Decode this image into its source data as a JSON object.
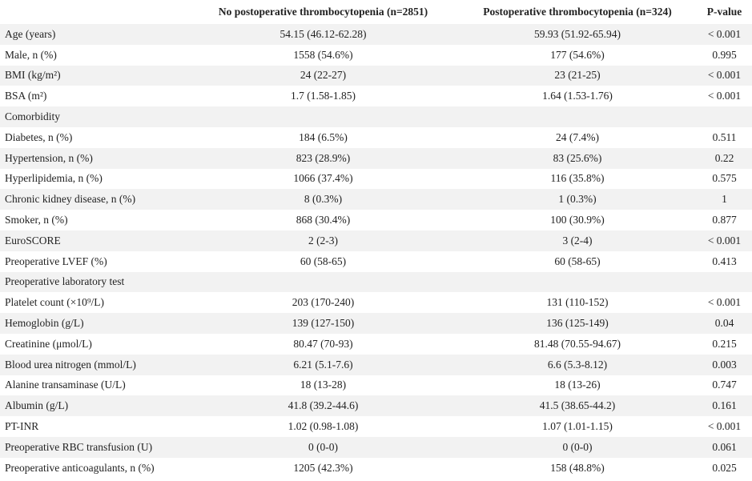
{
  "table": {
    "header": [
      "",
      "No postoperative thrombocytopenia (n=2851)",
      "Postoperative thrombocytopenia (n=324)",
      "P-value"
    ],
    "rows": [
      [
        "Age (years)",
        "54.15 (46.12-62.28)",
        "59.93 (51.92-65.94)",
        "< 0.001"
      ],
      [
        "Male, n (%)",
        "1558 (54.6%)",
        "177 (54.6%)",
        "0.995"
      ],
      [
        "BMI (kg/m²)",
        "24 (22-27)",
        "23 (21-25)",
        "< 0.001"
      ],
      [
        "BSA (m²)",
        "1.7 (1.58-1.85)",
        "1.64 (1.53-1.76)",
        "< 0.001"
      ],
      [
        "Comorbidity"
      ],
      [
        "Diabetes, n (%)",
        "184 (6.5%)",
        "24 (7.4%)",
        "0.511"
      ],
      [
        "Hypertension, n (%)",
        "823 (28.9%)",
        "83 (25.6%)",
        "0.22"
      ],
      [
        "Hyperlipidemia, n (%)",
        "1066 (37.4%)",
        "116 (35.8%)",
        "0.575"
      ],
      [
        "Chronic kidney disease, n (%)",
        "8 (0.3%)",
        "1 (0.3%)",
        "1"
      ],
      [
        "Smoker, n (%)",
        "868 (30.4%)",
        "100 (30.9%)",
        "0.877"
      ],
      [
        "EuroSCORE",
        "2 (2-3)",
        "3 (2-4)",
        "< 0.001"
      ],
      [
        "Preoperative LVEF (%)",
        "60 (58-65)",
        "60 (58-65)",
        "0.413"
      ],
      [
        "Preoperative laboratory test"
      ],
      [
        "Platelet count (×10⁹/L)",
        "203 (170-240)",
        "131 (110-152)",
        "< 0.001"
      ],
      [
        "Hemoglobin (g/L)",
        "139 (127-150)",
        "136 (125-149)",
        "0.04"
      ],
      [
        "Creatinine (μmol/L)",
        "80.47 (70-93)",
        "81.48 (70.55-94.67)",
        "0.215"
      ],
      [
        "Blood urea nitrogen (mmol/L)",
        "6.21 (5.1-7.6)",
        "6.6 (5.3-8.12)",
        "0.003"
      ],
      [
        "Alanine transaminase (U/L)",
        "18 (13-28)",
        "18 (13-26)",
        "0.747"
      ],
      [
        "Albumin (g/L)",
        "41.8 (39.2-44.6)",
        "41.5 (38.65-44.2)",
        "0.161"
      ],
      [
        "PT-INR",
        "1.02 (0.98-1.08)",
        "1.07 (1.01-1.15)",
        "< 0.001"
      ],
      [
        "Preoperative RBC transfusion (U)",
        "0 (0-0)",
        "0 (0-0)",
        "0.061"
      ],
      [
        "Preoperative anticoagulants, n (%)",
        "1205 (42.3%)",
        "158 (48.8%)",
        "0.025"
      ]
    ]
  }
}
